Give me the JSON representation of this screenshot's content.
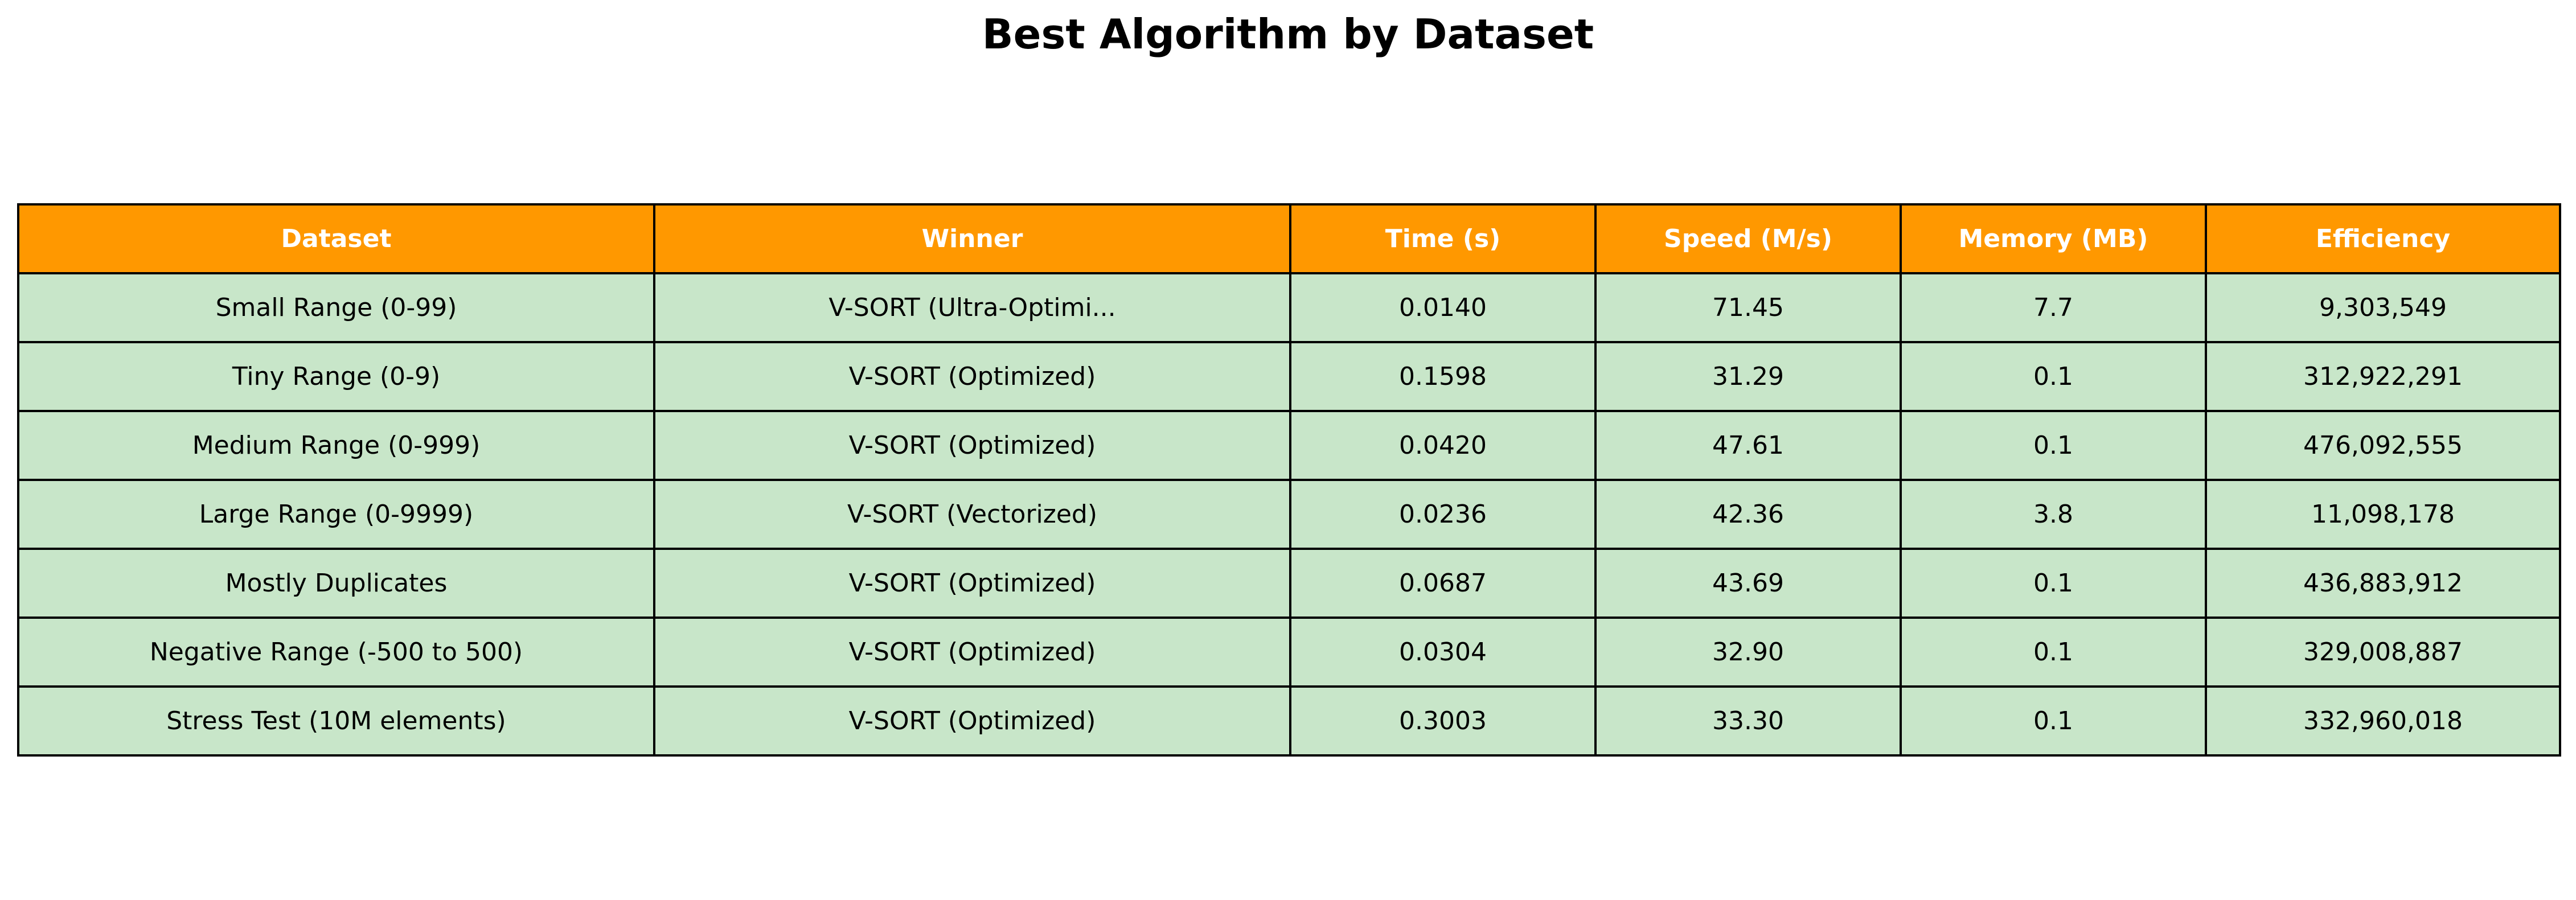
{
  "chart_data": {
    "type": "table",
    "title": "Best Algorithm by Dataset",
    "columns": [
      "Dataset",
      "Winner",
      "Time (s)",
      "Speed (M/s)",
      "Memory (MB)",
      "Efficiency"
    ],
    "rows": [
      [
        "Small Range (0-99)",
        "V-SORT (Ultra-Optimi...",
        "0.0140",
        "71.45",
        "7.7",
        "9,303,549"
      ],
      [
        "Tiny Range (0-9)",
        "V-SORT (Optimized)",
        "0.1598",
        "31.29",
        "0.1",
        "312,922,291"
      ],
      [
        "Medium Range (0-999)",
        "V-SORT (Optimized)",
        "0.0420",
        "47.61",
        "0.1",
        "476,092,555"
      ],
      [
        "Large Range (0-9999)",
        "V-SORT (Vectorized)",
        "0.0236",
        "42.36",
        "3.8",
        "11,098,178"
      ],
      [
        "Mostly Duplicates",
        "V-SORT (Optimized)",
        "0.0687",
        "43.69",
        "0.1",
        "436,883,912"
      ],
      [
        "Negative Range (-500 to 500)",
        "V-SORT (Optimized)",
        "0.0304",
        "32.90",
        "0.1",
        "329,008,887"
      ],
      [
        "Stress Test (10M elements)",
        "V-SORT (Optimized)",
        "0.3003",
        "33.30",
        "0.1",
        "332,960,018"
      ]
    ],
    "header_color": "#ff9800",
    "header_text_color": "#ffffff",
    "cell_color": "#c8e6c9",
    "border_color": "#000000"
  }
}
